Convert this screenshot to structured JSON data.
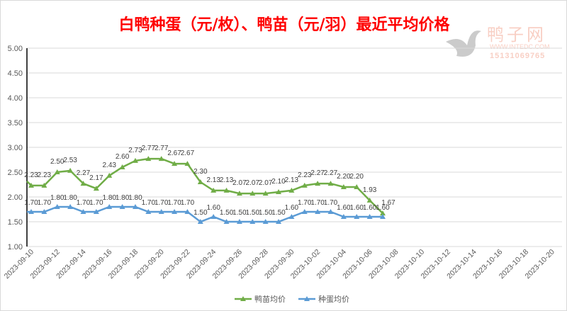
{
  "chart_data": {
    "type": "line",
    "title": "白鸭种蛋（元/枚）、鸭苗（元/羽）最近平均价格",
    "xlabel": "",
    "ylabel": "",
    "ylim": [
      1.0,
      5.0
    ],
    "yticks": [
      "1.00",
      "1.50",
      "2.00",
      "2.50",
      "3.00",
      "3.50",
      "4.00",
      "4.50",
      "5.00"
    ],
    "xtick_labels": [
      "2023-09-10",
      "2023-09-12",
      "2023-09-14",
      "2023-09-16",
      "2023-09-18",
      "2023-09-20",
      "2023-09-22",
      "2023-09-24",
      "2023-09-26",
      "2023-09-28",
      "2023-09-30",
      "2023-10-02",
      "2023-10-04",
      "2023-10-06",
      "2023-10-08",
      "2023-10-10",
      "2023-10-12",
      "2023-10-14",
      "2023-10-16",
      "2023-10-18",
      "2023-10-20"
    ],
    "x_start": "2023-09-10",
    "grid": true,
    "legend_position": "bottom",
    "series": [
      {
        "name": "鸭苗均价",
        "color": "#70ad47",
        "values": [
          2.23,
          2.23,
          2.5,
          2.53,
          2.27,
          2.17,
          2.43,
          2.6,
          2.73,
          2.77,
          2.77,
          2.67,
          2.67,
          2.3,
          2.13,
          2.13,
          2.07,
          2.07,
          2.07,
          2.1,
          2.13,
          2.23,
          2.27,
          2.27,
          2.2,
          2.2,
          1.93,
          1.67
        ]
      },
      {
        "name": "种蛋均价",
        "color": "#5b9bd5",
        "values": [
          1.7,
          1.7,
          1.8,
          1.8,
          1.7,
          1.7,
          1.8,
          1.8,
          1.8,
          1.7,
          1.7,
          1.7,
          1.7,
          1.5,
          1.6,
          1.5,
          1.5,
          1.5,
          1.5,
          1.5,
          1.6,
          1.7,
          1.7,
          1.7,
          1.6,
          1.6,
          1.6,
          1.6
        ]
      }
    ]
  },
  "watermark": {
    "name": "鸭子网",
    "url": "WWW.INTEDC.COM",
    "phone": "15131069765"
  }
}
